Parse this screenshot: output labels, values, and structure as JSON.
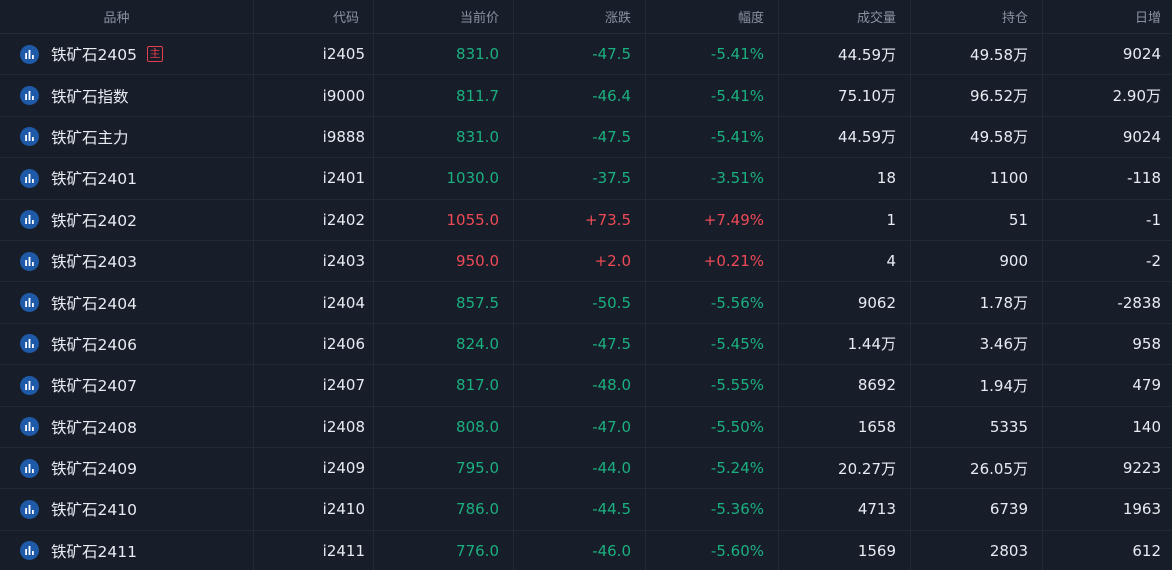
{
  "colors": {
    "up": "#ee4a57",
    "down": "#1bb07f",
    "text": "#e8ecf2",
    "header": "#8a92a1",
    "bg": "#171d29",
    "icon": "#1e5aa8",
    "badge": "#e23e4d"
  },
  "headers": [
    "品种",
    "代码",
    "当前价",
    "涨跌",
    "幅度",
    "成交量",
    "持仓",
    "日增"
  ],
  "rows": [
    {
      "name": "铁矿石2405",
      "badge": "主",
      "code": "i2405",
      "price": "831.0",
      "change": "-47.5",
      "pct": "-5.41%",
      "volume": "44.59万",
      "oi": "49.58万",
      "daily": "9024",
      "dir": "down"
    },
    {
      "name": "铁矿石指数",
      "badge": "",
      "code": "i9000",
      "price": "811.7",
      "change": "-46.4",
      "pct": "-5.41%",
      "volume": "75.10万",
      "oi": "96.52万",
      "daily": "2.90万",
      "dir": "down"
    },
    {
      "name": "铁矿石主力",
      "badge": "",
      "code": "i9888",
      "price": "831.0",
      "change": "-47.5",
      "pct": "-5.41%",
      "volume": "44.59万",
      "oi": "49.58万",
      "daily": "9024",
      "dir": "down"
    },
    {
      "name": "铁矿石2401",
      "badge": "",
      "code": "i2401",
      "price": "1030.0",
      "change": "-37.5",
      "pct": "-3.51%",
      "volume": "18",
      "oi": "1100",
      "daily": "-118",
      "dir": "down"
    },
    {
      "name": "铁矿石2402",
      "badge": "",
      "code": "i2402",
      "price": "1055.0",
      "change": "+73.5",
      "pct": "+7.49%",
      "volume": "1",
      "oi": "51",
      "daily": "-1",
      "dir": "up"
    },
    {
      "name": "铁矿石2403",
      "badge": "",
      "code": "i2403",
      "price": "950.0",
      "change": "+2.0",
      "pct": "+0.21%",
      "volume": "4",
      "oi": "900",
      "daily": "-2",
      "dir": "up"
    },
    {
      "name": "铁矿石2404",
      "badge": "",
      "code": "i2404",
      "price": "857.5",
      "change": "-50.5",
      "pct": "-5.56%",
      "volume": "9062",
      "oi": "1.78万",
      "daily": "-2838",
      "dir": "down"
    },
    {
      "name": "铁矿石2406",
      "badge": "",
      "code": "i2406",
      "price": "824.0",
      "change": "-47.5",
      "pct": "-5.45%",
      "volume": "1.44万",
      "oi": "3.46万",
      "daily": "958",
      "dir": "down"
    },
    {
      "name": "铁矿石2407",
      "badge": "",
      "code": "i2407",
      "price": "817.0",
      "change": "-48.0",
      "pct": "-5.55%",
      "volume": "8692",
      "oi": "1.94万",
      "daily": "479",
      "dir": "down"
    },
    {
      "name": "铁矿石2408",
      "badge": "",
      "code": "i2408",
      "price": "808.0",
      "change": "-47.0",
      "pct": "-5.50%",
      "volume": "1658",
      "oi": "5335",
      "daily": "140",
      "dir": "down"
    },
    {
      "name": "铁矿石2409",
      "badge": "",
      "code": "i2409",
      "price": "795.0",
      "change": "-44.0",
      "pct": "-5.24%",
      "volume": "20.27万",
      "oi": "26.05万",
      "daily": "9223",
      "dir": "down"
    },
    {
      "name": "铁矿石2410",
      "badge": "",
      "code": "i2410",
      "price": "786.0",
      "change": "-44.5",
      "pct": "-5.36%",
      "volume": "4713",
      "oi": "6739",
      "daily": "1963",
      "dir": "down"
    },
    {
      "name": "铁矿石2411",
      "badge": "",
      "code": "i2411",
      "price": "776.0",
      "change": "-46.0",
      "pct": "-5.60%",
      "volume": "1569",
      "oi": "2803",
      "daily": "612",
      "dir": "down"
    }
  ]
}
